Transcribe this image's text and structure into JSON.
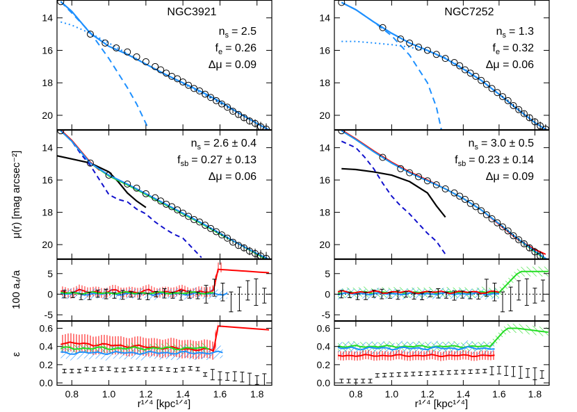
{
  "figure": {
    "ylabel_main": "μ(r)  [mag arcsec⁻²]",
    "ylabel_a4": "100 a₄/a",
    "ylabel_eps": "ε",
    "xlabel": "r¹ᐟ⁴ [kpc¹ᐟ⁴]"
  },
  "chart_data": [
    {
      "type": "line",
      "name": "NGC3921",
      "xlim": [
        0.72,
        1.88
      ],
      "xticks": [
        "0.8",
        "1.0",
        "1.2",
        "1.4",
        "1.6",
        "1.8"
      ],
      "panels": {
        "fit": {
          "ylim": [
            20.9,
            12.9
          ],
          "yticks": [
            "14",
            "16",
            "18",
            "20"
          ],
          "title": "NGC3921",
          "lines": [
            "n",
            "= 2.5",
            "f",
            "= 0.26",
            "Δμ = 0.09"
          ],
          "sub": [
            "s",
            "e"
          ],
          "data_x": [
            0.74,
            0.9,
            0.98,
            1.04,
            1.1,
            1.15,
            1.2,
            1.25,
            1.28,
            1.31,
            1.34,
            1.37,
            1.4,
            1.43,
            1.46,
            1.49,
            1.52,
            1.55,
            1.58,
            1.61,
            1.64,
            1.67,
            1.7,
            1.73,
            1.76,
            1.79,
            1.82,
            1.85
          ],
          "data_y": [
            13.0,
            15.0,
            15.55,
            15.85,
            16.1,
            16.4,
            16.7,
            17.0,
            17.2,
            17.4,
            17.6,
            17.75,
            17.95,
            18.15,
            18.35,
            18.5,
            18.7,
            18.9,
            19.1,
            19.3,
            19.5,
            19.75,
            19.95,
            20.15,
            20.35,
            20.5,
            20.7,
            20.85
          ],
          "data_err": [
            0,
            0,
            0,
            0,
            0,
            0,
            0,
            0,
            0,
            0,
            0,
            0,
            0,
            0,
            0,
            0,
            0,
            0.05,
            0.06,
            0.08,
            0.1,
            0.12,
            0.15,
            0.18,
            0.22,
            0.25,
            0.3,
            0.35
          ],
          "total_x": [
            0.74,
            0.8,
            0.9,
            1.0,
            1.1,
            1.2,
            1.3,
            1.4,
            1.5,
            1.6,
            1.7,
            1.8,
            1.88
          ],
          "total_y": [
            13.0,
            13.6,
            14.95,
            15.75,
            16.25,
            16.85,
            17.45,
            18.0,
            18.55,
            19.15,
            19.85,
            20.5,
            21.0
          ],
          "bulge_x": [
            0.74,
            0.8,
            0.9,
            1.0,
            1.05,
            1.1,
            1.15,
            1.2,
            1.22
          ],
          "bulge_y": [
            13.0,
            13.7,
            14.9,
            16.5,
            17.4,
            18.3,
            19.3,
            20.5,
            21.0
          ],
          "disk_x": [
            0.74,
            0.8,
            0.9,
            1.0,
            1.1,
            1.2,
            1.3,
            1.4,
            1.5,
            1.6,
            1.7,
            1.8,
            1.88
          ],
          "disk_y": [
            14.25,
            14.45,
            14.95,
            15.55,
            16.2,
            16.85,
            17.45,
            18.05,
            18.65,
            19.25,
            19.85,
            20.5,
            21.0
          ]
        },
        "colors": {
          "ylim": [
            20.9,
            12.9
          ],
          "yticks": [
            "14",
            "16",
            "18",
            "20"
          ],
          "lines": [
            "n",
            "= 2.6 ± 0.4",
            "f",
            "= 0.27 ± 0.13",
            "Δμ = 0.06"
          ],
          "sub": [
            "s",
            "sb"
          ],
          "data_x": [
            0.74,
            0.9,
            1.0,
            1.1,
            1.15,
            1.2,
            1.25,
            1.28,
            1.31,
            1.34,
            1.37,
            1.4,
            1.43,
            1.46,
            1.49,
            1.52,
            1.55,
            1.58,
            1.61,
            1.64,
            1.67,
            1.7,
            1.73,
            1.76,
            1.79,
            1.82,
            1.85
          ],
          "data_y": [
            12.95,
            14.95,
            15.7,
            16.25,
            16.5,
            16.85,
            17.1,
            17.3,
            17.5,
            17.65,
            17.85,
            18.05,
            18.25,
            18.45,
            18.6,
            18.8,
            19.0,
            19.2,
            19.4,
            19.6,
            19.85,
            20.05,
            20.2,
            20.4,
            20.55,
            20.7,
            20.85
          ],
          "data_err": [
            0,
            0,
            0,
            0,
            0,
            0,
            0,
            0,
            0,
            0,
            0,
            0,
            0,
            0,
            0,
            0,
            0.05,
            0.06,
            0.08,
            0.1,
            0.12,
            0.15,
            0.2,
            0.25,
            0.3,
            0.35,
            0.4
          ],
          "blue_x": [
            0.74,
            0.8,
            0.9,
            1.0,
            1.1,
            1.2,
            1.3,
            1.4,
            1.5,
            1.6,
            1.7,
            1.8,
            1.88
          ],
          "blue_y": [
            12.95,
            13.6,
            14.95,
            15.7,
            16.25,
            16.85,
            17.45,
            18.05,
            18.65,
            19.3,
            19.95,
            20.55,
            21.0
          ],
          "red_x": [
            0.74,
            0.8,
            0.9,
            0.95
          ],
          "red_y": [
            12.9,
            13.55,
            14.9,
            15.4
          ],
          "green_x": [
            0.74,
            0.8,
            0.9,
            1.0,
            1.1,
            1.2,
            1.3,
            1.4,
            1.5,
            1.6,
            1.7,
            1.8,
            1.86
          ],
          "green_y": [
            12.95,
            13.6,
            14.95,
            15.75,
            16.3,
            16.9,
            17.5,
            18.1,
            18.7,
            19.35,
            19.95,
            20.6,
            20.95
          ],
          "dashed_x": [
            0.74,
            0.8,
            0.85,
            0.9,
            0.95,
            1.0,
            1.05,
            1.1,
            1.15,
            1.2,
            1.25,
            1.3,
            1.35,
            1.4,
            1.45,
            1.5
          ],
          "dashed_y": [
            12.95,
            13.6,
            14.4,
            15.1,
            16.0,
            16.9,
            17.2,
            17.35,
            17.8,
            18.1,
            18.6,
            19.0,
            19.35,
            19.6,
            20.2,
            20.8
          ],
          "black_x": [
            0.72,
            0.8,
            0.9,
            1.0,
            1.05,
            1.1,
            1.15,
            1.2
          ],
          "black_y": [
            14.5,
            14.7,
            14.95,
            15.5,
            16.1,
            16.8,
            17.3,
            17.7
          ]
        },
        "a4": {
          "ylim": [
            -6.5,
            8.5
          ],
          "yticks": [
            "-5",
            "0",
            "5"
          ]
        },
        "eps": {
          "ylim": [
            -0.03,
            0.68
          ],
          "yticks": [
            "0.0",
            "0.2",
            "0.4",
            "0.6"
          ]
        }
      }
    },
    {
      "type": "line",
      "name": "NGC7252",
      "xlim": [
        0.68,
        1.88
      ],
      "xticks": [
        "0.8",
        "1.0",
        "1.2",
        "1.4",
        "1.6",
        "1.8"
      ],
      "panels": {
        "fit": {
          "ylim": [
            20.9,
            12.9
          ],
          "yticks": [
            "14",
            "16",
            "18",
            "20"
          ],
          "title": "NGC7252",
          "lines": [
            "n",
            "= 1.3",
            "f",
            "= 0.32",
            "Δμ = 0.06"
          ],
          "sub": [
            "s",
            "e"
          ],
          "data_x": [
            0.72,
            0.95,
            1.05,
            1.1,
            1.15,
            1.2,
            1.25,
            1.3,
            1.35,
            1.38,
            1.41,
            1.44,
            1.47,
            1.5,
            1.53,
            1.56,
            1.59,
            1.62,
            1.65,
            1.68,
            1.71,
            1.74,
            1.77,
            1.8,
            1.83,
            1.86
          ],
          "data_y": [
            13.05,
            14.6,
            15.3,
            15.55,
            15.8,
            16.0,
            16.25,
            16.5,
            16.75,
            16.95,
            17.2,
            17.4,
            17.6,
            17.85,
            18.1,
            18.35,
            18.6,
            18.85,
            19.1,
            19.4,
            19.65,
            19.9,
            20.15,
            20.4,
            20.65,
            20.85
          ],
          "data_err": [
            0,
            0,
            0,
            0,
            0,
            0,
            0,
            0,
            0,
            0,
            0,
            0,
            0,
            0,
            0,
            0,
            0,
            0.05,
            0.07,
            0.1,
            0.12,
            0.15,
            0.18,
            0.22,
            0.26,
            0.3
          ],
          "total_x": [
            0.72,
            0.8,
            0.9,
            1.0,
            1.1,
            1.2,
            1.3,
            1.4,
            1.5,
            1.6,
            1.7,
            1.8,
            1.88
          ],
          "total_y": [
            13.05,
            13.5,
            14.25,
            14.95,
            15.55,
            16.0,
            16.5,
            17.15,
            17.85,
            18.7,
            19.6,
            20.45,
            21.0
          ],
          "bulge_x": [
            0.72,
            0.8,
            0.9,
            1.0,
            1.1,
            1.2,
            1.25,
            1.28
          ],
          "bulge_y": [
            13.05,
            13.5,
            14.25,
            15.1,
            16.3,
            18.0,
            19.5,
            21.0
          ],
          "disk_x": [
            0.72,
            0.8,
            0.9,
            1.0,
            1.1,
            1.2,
            1.3,
            1.4,
            1.5,
            1.6,
            1.7,
            1.8,
            1.88
          ],
          "disk_y": [
            15.45,
            15.45,
            15.55,
            15.65,
            15.8,
            16.05,
            16.45,
            17.1,
            17.85,
            18.7,
            19.6,
            20.45,
            21.0
          ]
        },
        "colors": {
          "ylim": [
            20.9,
            12.9
          ],
          "yticks": [
            "14",
            "16",
            "18",
            "20"
          ],
          "lines": [
            "n",
            "= 3.0 ± 0.5",
            "f",
            "= 0.23 ± 0.14",
            "Δμ = 0.09"
          ],
          "sub": [
            "s",
            "sb"
          ],
          "data_x": [
            0.72,
            0.95,
            1.05,
            1.1,
            1.15,
            1.2,
            1.25,
            1.3,
            1.35,
            1.38,
            1.41,
            1.44,
            1.47,
            1.5,
            1.53,
            1.56,
            1.59,
            1.62,
            1.65,
            1.68,
            1.71,
            1.74,
            1.77,
            1.8,
            1.83
          ],
          "data_y": [
            12.95,
            14.6,
            15.3,
            15.55,
            15.8,
            16.05,
            16.3,
            16.55,
            16.8,
            17.0,
            17.2,
            17.45,
            17.65,
            17.9,
            18.15,
            18.4,
            18.65,
            18.9,
            19.15,
            19.45,
            19.7,
            19.95,
            20.2,
            20.45,
            20.7
          ],
          "data_err": [
            0,
            0,
            0,
            0,
            0,
            0,
            0,
            0,
            0,
            0,
            0,
            0,
            0,
            0,
            0,
            0,
            0,
            0.06,
            0.08,
            0.1,
            0.12,
            0.15,
            0.2,
            0.25,
            0.3
          ],
          "blue_x": [
            0.72,
            0.8,
            0.9,
            1.0,
            1.1,
            1.2,
            1.3,
            1.4,
            1.5,
            1.6,
            1.7,
            1.8,
            1.88
          ],
          "blue_y": [
            12.95,
            13.5,
            14.25,
            14.95,
            15.55,
            16.05,
            16.55,
            17.15,
            17.85,
            18.7,
            19.6,
            20.4,
            21.0
          ],
          "red_x": [
            0.72,
            0.8,
            0.9,
            1.0,
            1.1,
            1.2,
            1.3,
            1.4,
            1.5,
            1.6,
            1.7,
            1.8,
            1.86
          ],
          "red_y": [
            12.9,
            13.45,
            14.2,
            14.9,
            15.5,
            16.0,
            16.55,
            17.15,
            17.85,
            18.75,
            19.65,
            20.3,
            20.6
          ],
          "green_x": [
            0.72,
            0.8,
            0.9,
            1.0,
            1.1,
            1.2,
            1.3,
            1.4,
            1.5,
            1.6,
            1.7,
            1.8,
            1.86
          ],
          "green_y": [
            12.95,
            13.5,
            14.25,
            14.95,
            15.55,
            16.05,
            16.55,
            17.15,
            17.85,
            18.7,
            19.6,
            20.45,
            20.9
          ],
          "dashed_x": [
            0.72,
            0.8,
            0.85,
            0.9,
            0.95,
            1.0,
            1.05,
            1.1,
            1.15,
            1.2,
            1.25,
            1.3
          ],
          "dashed_y": [
            13.6,
            14.0,
            14.6,
            15.3,
            16.2,
            17.0,
            17.6,
            18.1,
            18.7,
            19.3,
            19.8,
            20.6
          ],
          "black_x": [
            0.72,
            0.8,
            0.9,
            1.0,
            1.1,
            1.2,
            1.25,
            1.3
          ],
          "black_y": [
            15.3,
            15.35,
            15.5,
            15.7,
            16.1,
            16.8,
            17.6,
            18.3
          ]
        },
        "a4": {
          "ylim": [
            -6.5,
            8.5
          ],
          "yticks": [
            "-5",
            "0",
            "5"
          ]
        },
        "eps": {
          "ylim": [
            -0.03,
            0.68
          ],
          "yticks": [
            "0.0",
            "0.2",
            "0.4",
            "0.6"
          ]
        }
      }
    }
  ]
}
